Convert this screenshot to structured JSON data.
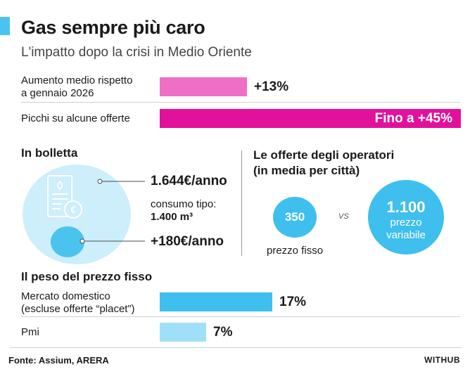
{
  "header": {
    "title": "Gas sempre più caro",
    "subtitle": "L'impatto dopo la crisi in Medio Oriente"
  },
  "chart_data": [
    {
      "type": "bar",
      "orientation": "horizontal",
      "categories": [
        "Aumento medio rispetto a gennaio 2026",
        "Picchi su alcune offerte"
      ],
      "label_lines": [
        [
          "Aumento medio rispetto",
          "a gennaio 2026"
        ],
        [
          "Picchi su alcune offerte"
        ]
      ],
      "values": [
        13,
        45
      ],
      "value_labels": [
        "+13%",
        "+45%"
      ],
      "value_prefix": [
        "",
        "Fino a "
      ],
      "colors": [
        "#ee6fc5",
        "#e2119b"
      ],
      "unit": "%",
      "xlim": [
        0,
        45
      ]
    },
    {
      "type": "bar",
      "orientation": "horizontal",
      "title": "Il peso del prezzo fisso",
      "categories": [
        "Mercato domestico (escluse offerte “placet”)",
        "Pmi"
      ],
      "label_lines": [
        [
          "Mercato domestico",
          "(escluse offerte “placet”)"
        ],
        [
          "Pmi"
        ]
      ],
      "values": [
        17,
        7
      ],
      "value_labels": [
        "17%",
        "7%"
      ],
      "colors": [
        "#3fbfed",
        "#9fe0f8"
      ],
      "unit": "%",
      "xlim": [
        0,
        17
      ]
    }
  ],
  "bolletta": {
    "heading": "In bolletta",
    "annual": "1.644€/anno",
    "consumo_label": "consumo tipo:",
    "consumo_value": "1.400 m³",
    "increase": "+180€/anno",
    "colors": {
      "circle": "#cdeefb",
      "dot": "#4bc3ef"
    }
  },
  "offerte": {
    "heading_1": "Le offerte degli operatori",
    "heading_2": "(in media per città)",
    "fisso_value": "350",
    "fisso_label": "prezzo fisso",
    "vs": "VS",
    "variabile_value": "1.100",
    "variabile_label_1": "prezzo",
    "variabile_label_2": "variabile",
    "color": "#3fbfed"
  },
  "footer": {
    "source": "Fonte: Assium, ARERA",
    "brand": "WITHUB"
  }
}
